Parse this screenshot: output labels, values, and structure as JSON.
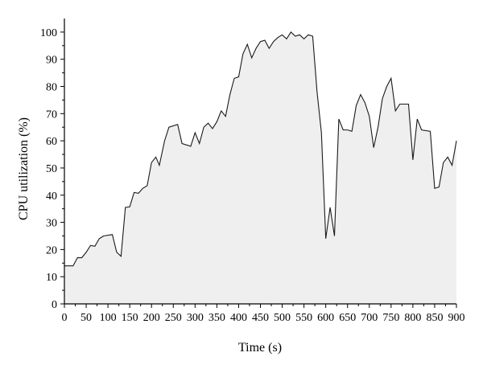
{
  "chart_data": {
    "type": "area",
    "xlabel": "Time (s)",
    "ylabel": "CPU utilization (%)",
    "xlim": [
      0,
      900
    ],
    "ylim": [
      0,
      105
    ],
    "x_ticks": [
      0,
      50,
      100,
      150,
      200,
      250,
      300,
      350,
      400,
      450,
      500,
      550,
      600,
      650,
      700,
      750,
      800,
      850,
      900
    ],
    "y_ticks": [
      0,
      10,
      20,
      30,
      40,
      50,
      60,
      70,
      80,
      90,
      100
    ],
    "grid": false,
    "colors": {
      "line": "#1a1a1a",
      "fill": "#efefef"
    },
    "series": [
      {
        "points": [
          [
            0,
            14
          ],
          [
            20,
            14
          ],
          [
            30,
            17
          ],
          [
            40,
            17
          ],
          [
            50,
            19
          ],
          [
            60,
            21.5
          ],
          [
            70,
            21.2
          ],
          [
            80,
            24
          ],
          [
            90,
            25
          ],
          [
            110,
            25.5
          ],
          [
            120,
            19
          ],
          [
            130,
            17.5
          ],
          [
            140,
            35.5
          ],
          [
            150,
            35.7
          ],
          [
            160,
            41
          ],
          [
            170,
            40.7
          ],
          [
            180,
            42.5
          ],
          [
            190,
            43.5
          ],
          [
            200,
            52
          ],
          [
            210,
            54
          ],
          [
            218,
            51
          ],
          [
            230,
            60
          ],
          [
            240,
            65
          ],
          [
            260,
            66
          ],
          [
            270,
            59
          ],
          [
            290,
            58
          ],
          [
            300,
            63
          ],
          [
            310,
            59
          ],
          [
            320,
            65
          ],
          [
            330,
            66.5
          ],
          [
            340,
            64.5
          ],
          [
            350,
            67
          ],
          [
            360,
            71
          ],
          [
            370,
            69
          ],
          [
            380,
            77
          ],
          [
            390,
            83
          ],
          [
            400,
            83.5
          ],
          [
            410,
            92
          ],
          [
            420,
            95.5
          ],
          [
            430,
            90.5
          ],
          [
            440,
            94
          ],
          [
            450,
            96.5
          ],
          [
            460,
            97
          ],
          [
            470,
            94
          ],
          [
            480,
            96.5
          ],
          [
            490,
            98
          ],
          [
            500,
            99
          ],
          [
            510,
            97.5
          ],
          [
            520,
            100
          ],
          [
            530,
            98.5
          ],
          [
            540,
            99
          ],
          [
            550,
            97.5
          ],
          [
            560,
            99
          ],
          [
            570,
            98.5
          ],
          [
            580,
            78
          ],
          [
            590,
            63
          ],
          [
            600,
            24
          ],
          [
            610,
            35.5
          ],
          [
            620,
            25
          ],
          [
            630,
            68
          ],
          [
            640,
            64
          ],
          [
            650,
            64
          ],
          [
            660,
            63.5
          ],
          [
            670,
            73
          ],
          [
            680,
            77
          ],
          [
            690,
            74
          ],
          [
            700,
            69
          ],
          [
            710,
            57.5
          ],
          [
            720,
            65
          ],
          [
            730,
            75.5
          ],
          [
            740,
            80
          ],
          [
            750,
            83
          ],
          [
            760,
            71
          ],
          [
            770,
            73.5
          ],
          [
            780,
            73.5
          ],
          [
            790,
            73.5
          ],
          [
            800,
            53
          ],
          [
            810,
            68
          ],
          [
            820,
            64
          ],
          [
            840,
            63.5
          ],
          [
            850,
            42.5
          ],
          [
            860,
            43
          ],
          [
            870,
            52
          ],
          [
            880,
            54
          ],
          [
            890,
            51
          ],
          [
            900,
            60
          ]
        ]
      }
    ]
  }
}
